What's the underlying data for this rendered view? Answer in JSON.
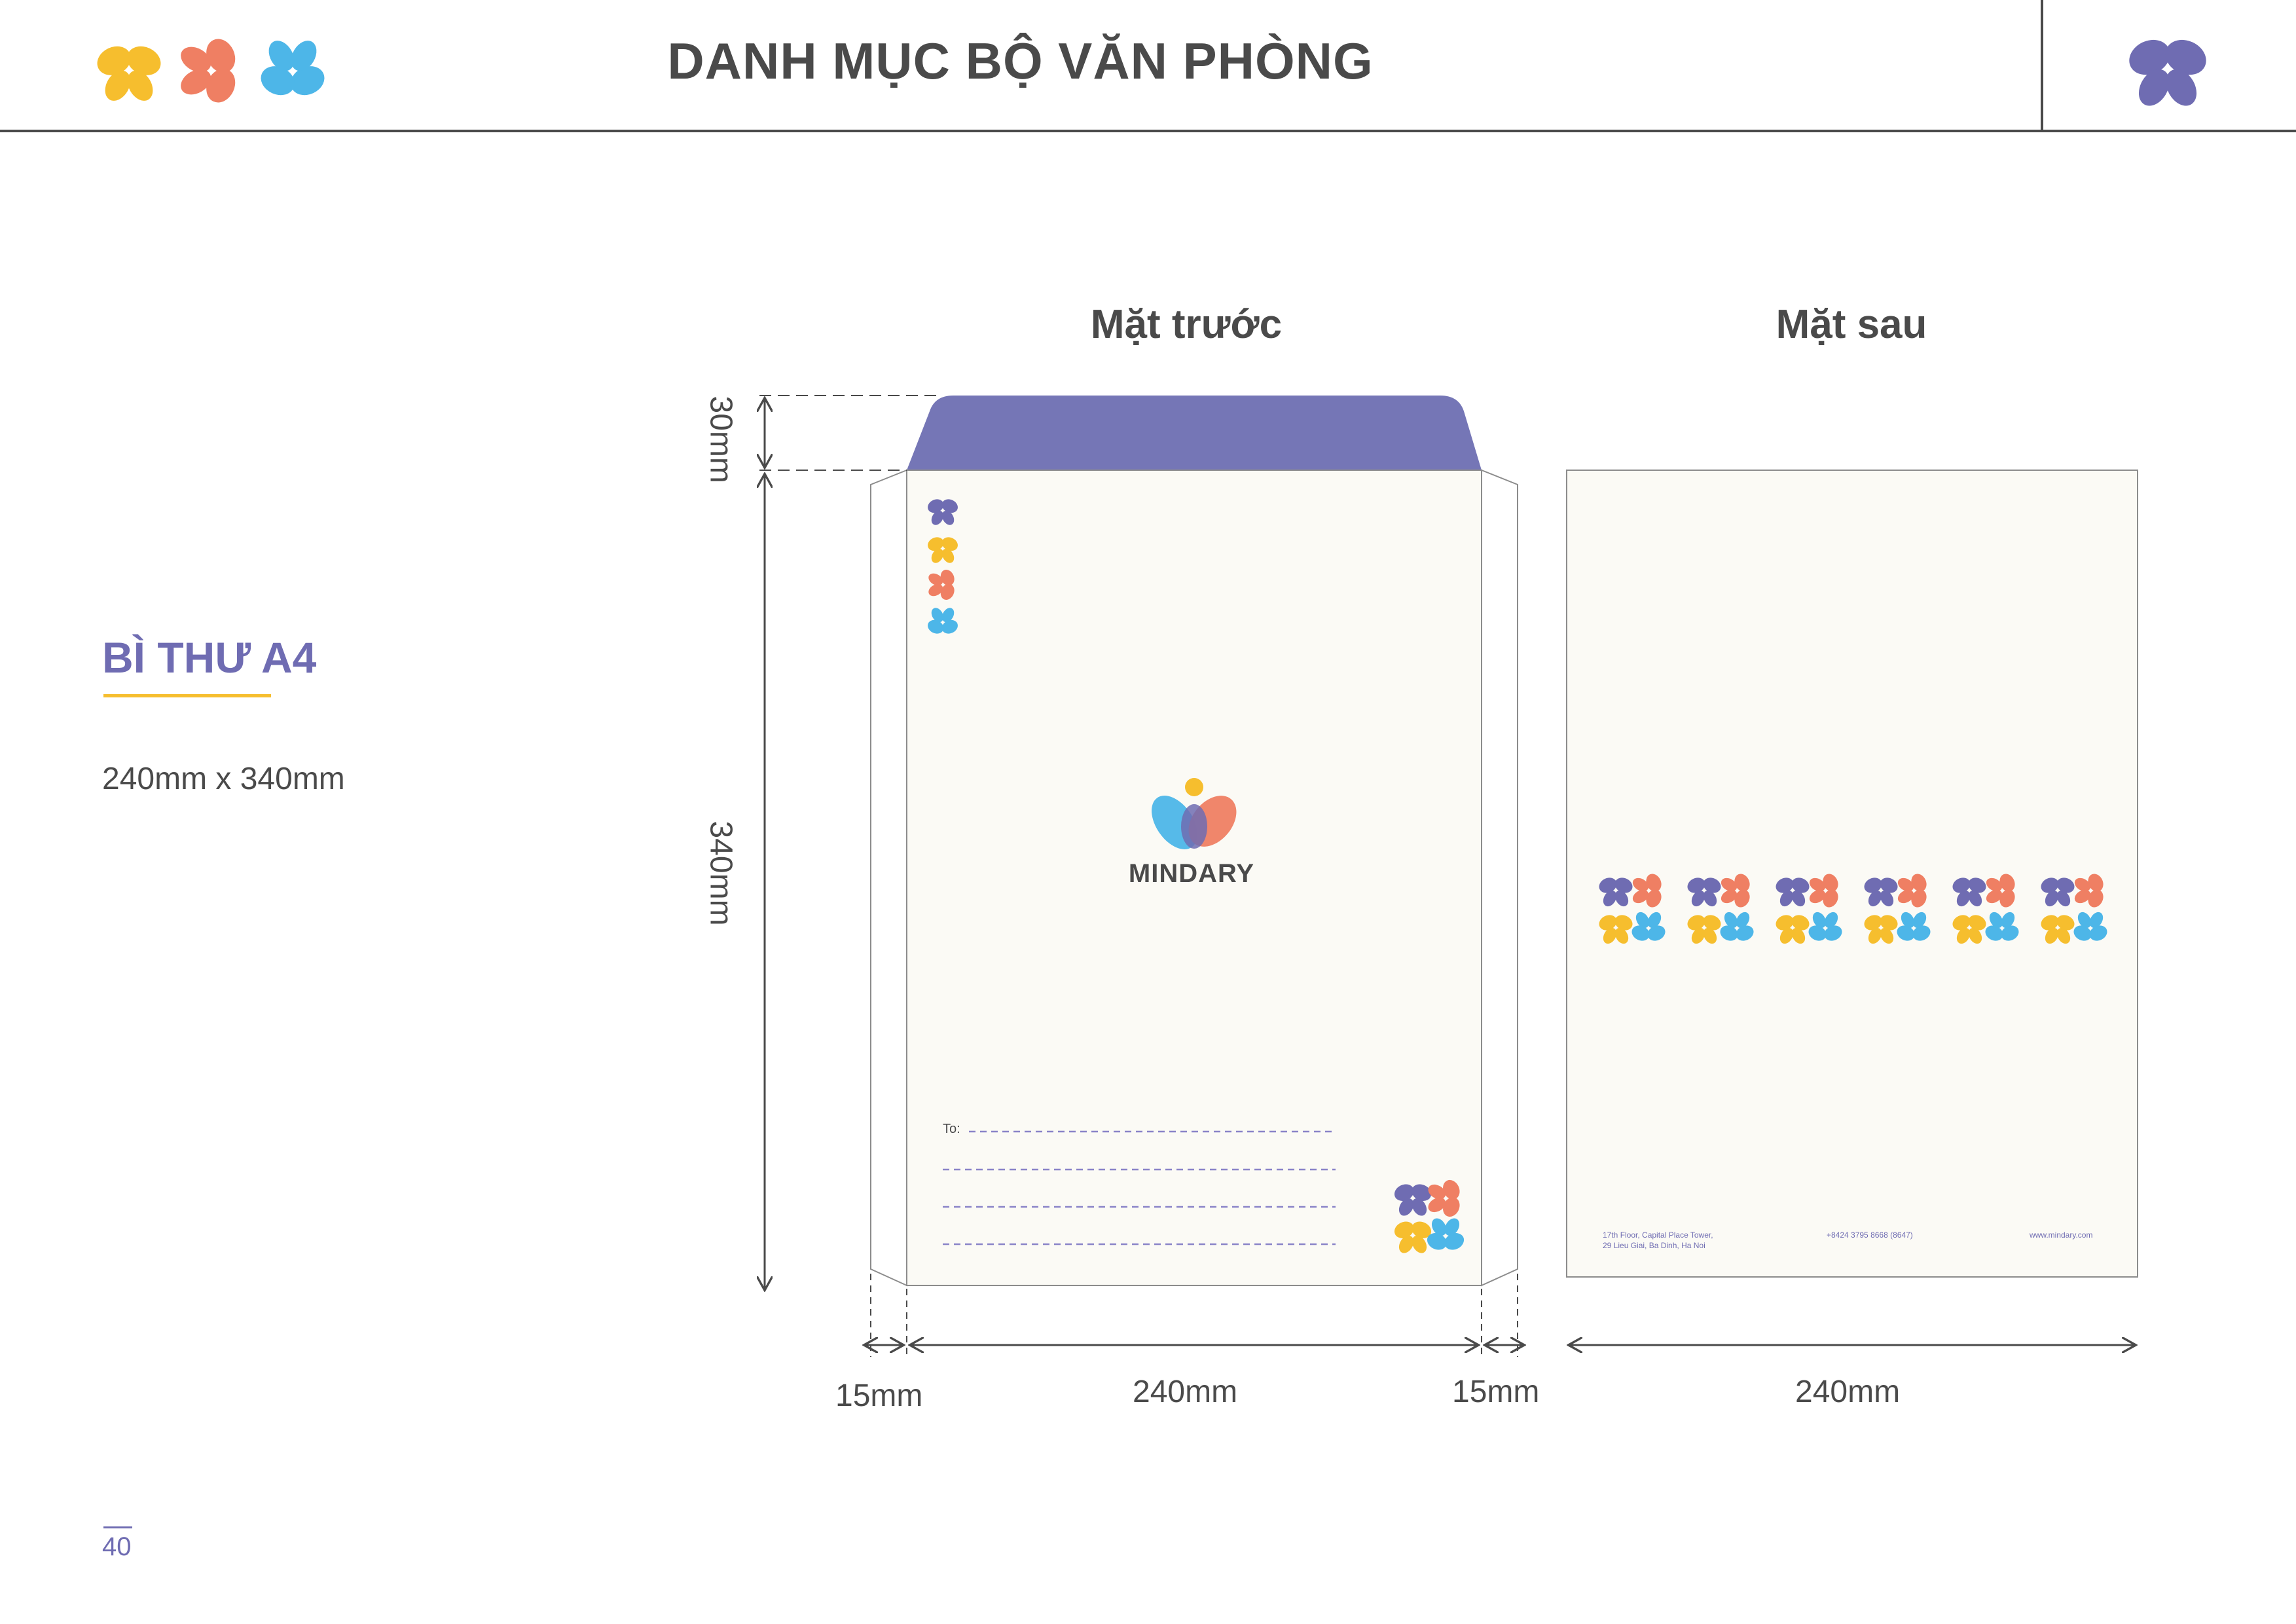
{
  "header": {
    "title": "DANH MỤC BỘ VĂN PHÒNG"
  },
  "colors": {
    "purple": "#6f6cb2",
    "yellow": "#f6be2e",
    "coral": "#ef7f63",
    "blue": "#4db6e8",
    "paper": "#fbfaf5",
    "text": "#4a4a4a"
  },
  "section": {
    "heading": "BÌ THƯ A4",
    "size": "240mm x 340mm"
  },
  "front": {
    "label": "Mặt trước",
    "brand": "MINDARY",
    "to_label": "To:"
  },
  "back": {
    "label": "Mặt sau",
    "address_line1": "17th Floor, Capital Place Tower,",
    "address_line2": "29 Lieu Giai, Ba Dinh, Ha Noi",
    "phone": "+8424 3795 8668 (8647)",
    "website": "www.mindary.com"
  },
  "dimensions": {
    "flap": "30mm",
    "height": "340mm",
    "left_margin": "15mm",
    "front_width": "240mm",
    "right_margin": "15mm",
    "back_width": "240mm"
  },
  "page_number": "40",
  "icons": [
    "butterfly-yellow-icon",
    "butterfly-coral-icon",
    "butterfly-blue-icon",
    "butterfly-purple-icon",
    "mindary-logo-icon"
  ]
}
